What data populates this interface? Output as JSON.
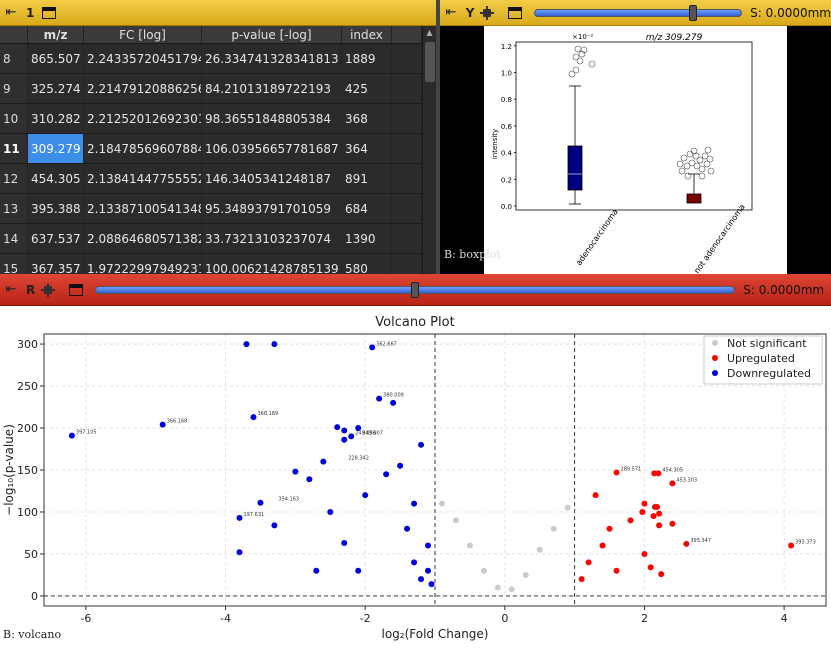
{
  "top_left_dock": {
    "pin": "⇤",
    "title": "1"
  },
  "table": {
    "columns": [
      "",
      "m/z",
      "FC [log]",
      "p-value [-log]",
      "index"
    ],
    "rows": [
      {
        "row": "8",
        "mz": "865.507",
        "fc": "2.2433572045179426",
        "p": "26.334741328341813",
        "index": "1889"
      },
      {
        "row": "9",
        "mz": "325.274",
        "fc": "2.214791208862565",
        "p": "84.21013189722193",
        "index": "425"
      },
      {
        "row": "10",
        "mz": "310.282",
        "fc": "2.2125201269230157",
        "p": "98.36551848805384",
        "index": "368"
      },
      {
        "row": "11",
        "mz": "309.279",
        "fc": "2.18478569607884",
        "p": "106.03956657781687",
        "index": "364",
        "selected": true
      },
      {
        "row": "12",
        "mz": "454.305",
        "fc": "2.138414477555522",
        "p": "146.3405341248187",
        "index": "891"
      },
      {
        "row": "13",
        "mz": "395.388",
        "fc": "2.1338710054134893",
        "p": "95.34893791701059",
        "index": "684"
      },
      {
        "row": "14",
        "mz": "637.537",
        "fc": "2.0886468057138208",
        "p": "33.73213103237074",
        "index": "1390"
      },
      {
        "row": "15",
        "mz": "367.357",
        "fc": "1.9722299794923108",
        "p": "100.00621428785139",
        "index": "580"
      }
    ]
  },
  "top_right_dock": {
    "pin": "⇤",
    "title": "Y",
    "slider_value": 0.77,
    "status": "S: 0.0000mm"
  },
  "boxplot": {
    "label": "B: boxplot",
    "title": "m/z 309.279",
    "exponent": "×10⁻²",
    "ylabel": "intensity",
    "yticks": [
      "0.0",
      "0.2",
      "0.4",
      "0.6",
      "0.8",
      "1.0",
      "1.2"
    ],
    "groups": [
      "adenocarcinoma",
      "not adenocarcinoma"
    ],
    "colors": {
      "adeno": "#000080",
      "not_adeno": "#7a0000"
    }
  },
  "red_dock": {
    "pin": "⇤",
    "title": "R",
    "slider_value": 0.5,
    "status": "S: 0.0000mm"
  },
  "volcano": {
    "label": "B: volcano",
    "colors": {
      "ns": "#cccccc",
      "up": "#ff0000",
      "down": "#0000dd"
    }
  },
  "chart_data": {
    "type": "scatter",
    "title": "Volcano Plot",
    "xlabel": "log₂(Fold Change)",
    "ylabel": "−log₁₀(p-value)",
    "xlim": [
      -6.6,
      4.6
    ],
    "ylim": [
      -12,
      312
    ],
    "xticks": [
      -6,
      -4,
      -2,
      0,
      2,
      4
    ],
    "yticks": [
      0,
      50,
      100,
      150,
      200,
      250,
      300
    ],
    "thresholds": {
      "fc": [
        -1,
        1
      ],
      "p": 0
    },
    "legend": [
      "Not significant",
      "Upregulated",
      "Downregulated"
    ],
    "legend_position": "top-right",
    "grid": true,
    "series": [
      {
        "name": "Downregulated",
        "points": [
          [
            -6.2,
            191
          ],
          [
            -4.9,
            204
          ],
          [
            -3.6,
            213
          ],
          [
            -3.7,
            300
          ],
          [
            -3.3,
            300
          ],
          [
            -1.9,
            296
          ],
          [
            -3.8,
            93
          ],
          [
            -3.5,
            111
          ],
          [
            -3.3,
            84
          ],
          [
            -3.0,
            148
          ],
          [
            -2.8,
            139
          ],
          [
            -2.6,
            160
          ],
          [
            -2.4,
            201
          ],
          [
            -2.3,
            197
          ],
          [
            -2.3,
            186
          ],
          [
            -2.2,
            190
          ],
          [
            -2.1,
            200
          ],
          [
            -1.8,
            235
          ],
          [
            -3.8,
            52
          ],
          [
            -2.7,
            30
          ],
          [
            -2.5,
            100
          ],
          [
            -2.3,
            63
          ],
          [
            -2.1,
            30
          ],
          [
            -2.0,
            120
          ],
          [
            -1.6,
            230
          ],
          [
            -1.7,
            145
          ],
          [
            -1.5,
            155
          ],
          [
            -1.3,
            110
          ],
          [
            -1.2,
            180
          ],
          [
            -1.1,
            60
          ],
          [
            -1.4,
            80
          ],
          [
            -1.3,
            40
          ],
          [
            -1.2,
            20
          ],
          [
            -1.1,
            30
          ],
          [
            -1.05,
            14
          ]
        ]
      },
      {
        "name": "Upregulated",
        "points": [
          [
            1.6,
            147
          ],
          [
            2.2,
            146
          ],
          [
            2.4,
            134
          ],
          [
            2.0,
            110
          ],
          [
            2.15,
            106
          ],
          [
            2.24,
            26
          ],
          [
            2.21,
            84
          ],
          [
            2.21,
            98
          ],
          [
            2.18,
            106
          ],
          [
            2.14,
            146
          ],
          [
            2.13,
            95
          ],
          [
            2.09,
            34
          ],
          [
            1.97,
            100
          ],
          [
            2.4,
            86
          ],
          [
            2.6,
            62
          ],
          [
            4.1,
            60
          ],
          [
            1.3,
            120
          ],
          [
            1.5,
            80
          ],
          [
            1.8,
            90
          ],
          [
            1.2,
            40
          ],
          [
            1.1,
            20
          ],
          [
            1.4,
            60
          ],
          [
            1.6,
            30
          ],
          [
            2.0,
            50
          ]
        ]
      },
      {
        "name": "Not significant",
        "points": [
          [
            -0.9,
            110
          ],
          [
            -0.7,
            90
          ],
          [
            -0.5,
            60
          ],
          [
            -0.3,
            30
          ],
          [
            -0.1,
            10
          ],
          [
            0.1,
            8
          ],
          [
            0.3,
            25
          ],
          [
            0.5,
            55
          ],
          [
            0.7,
            80
          ],
          [
            0.9,
            105
          ]
        ]
      }
    ],
    "annotations": [
      {
        "x": -6.2,
        "y": 191,
        "text": "397.105"
      },
      {
        "x": -4.9,
        "y": 204,
        "text": "366.168"
      },
      {
        "x": -3.6,
        "y": 213,
        "text": "368.189"
      },
      {
        "x": -1.9,
        "y": 296,
        "text": "362.667"
      },
      {
        "x": -1.8,
        "y": 235,
        "text": "380.009"
      },
      {
        "x": -2.2,
        "y": 190,
        "text": "249.096"
      },
      {
        "x": -2.1,
        "y": 190,
        "text": "343.007"
      },
      {
        "x": -2.3,
        "y": 160,
        "text": "228.342"
      },
      {
        "x": -3.3,
        "y": 111,
        "text": "354.163"
      },
      {
        "x": -3.8,
        "y": 93,
        "text": "197.631"
      },
      {
        "x": 1.6,
        "y": 147,
        "text": "289.571"
      },
      {
        "x": 2.2,
        "y": 146,
        "text": "454.305"
      },
      {
        "x": 2.4,
        "y": 134,
        "text": "453.303"
      },
      {
        "x": 2.6,
        "y": 62,
        "text": "395.347"
      },
      {
        "x": 4.1,
        "y": 60,
        "text": "393.373"
      }
    ]
  }
}
